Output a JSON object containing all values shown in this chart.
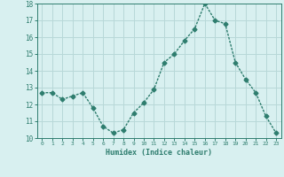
{
  "x": [
    0,
    1,
    2,
    3,
    4,
    5,
    6,
    7,
    8,
    9,
    10,
    11,
    12,
    13,
    14,
    15,
    16,
    17,
    18,
    19,
    20,
    21,
    22,
    23
  ],
  "y": [
    12.7,
    12.7,
    12.3,
    12.5,
    12.7,
    11.8,
    10.7,
    10.3,
    10.5,
    11.5,
    12.1,
    12.9,
    14.5,
    15.0,
    15.8,
    16.5,
    18.0,
    17.0,
    16.8,
    14.5,
    13.5,
    12.7,
    11.3,
    10.3
  ],
  "xlabel": "Humidex (Indice chaleur)",
  "ylim": [
    10,
    18
  ],
  "xlim_min": -0.5,
  "xlim_max": 23.5,
  "yticks": [
    10,
    11,
    12,
    13,
    14,
    15,
    16,
    17,
    18
  ],
  "xticks": [
    0,
    1,
    2,
    3,
    4,
    5,
    6,
    7,
    8,
    9,
    10,
    11,
    12,
    13,
    14,
    15,
    16,
    17,
    18,
    19,
    20,
    21,
    22,
    23
  ],
  "line_color": "#2e7d6e",
  "marker": "D",
  "marker_size": 2.5,
  "bg_color": "#d8f0f0",
  "grid_color": "#b8d8d8",
  "axis_color": "#2e7d6e",
  "tick_color": "#2e7d6e",
  "label_color": "#2e7d6e",
  "line_width": 1.0
}
